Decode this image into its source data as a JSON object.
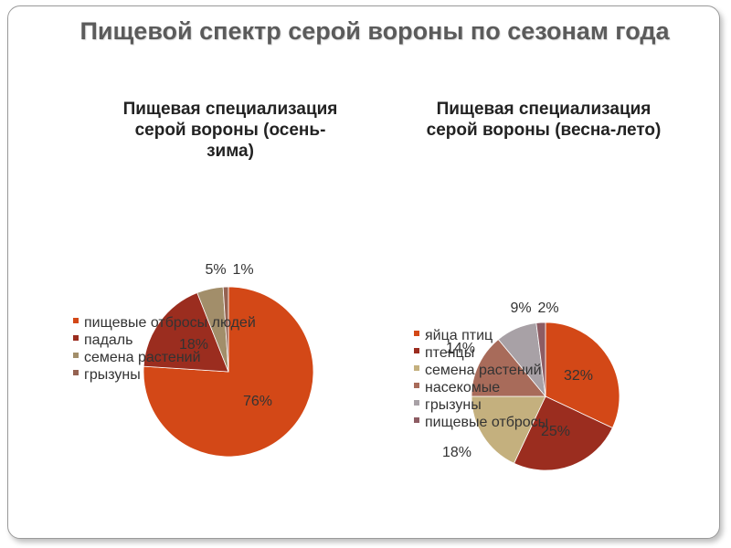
{
  "slide": {
    "title": "Пищевой спектр серой вороны по сезонам года"
  },
  "chart_data": [
    {
      "type": "pie",
      "title": "Пищевая специализация серой вороны (осень-зима)",
      "categories": [
        "пищевые отбросы людей",
        "падаль",
        "семена растений",
        "грызуны"
      ],
      "values": [
        76,
        18,
        5,
        1
      ],
      "value_labels": [
        "76%",
        "18%",
        "5%",
        "1%"
      ],
      "colors": [
        "#D34817",
        "#9B2D1F",
        "#A28E6A",
        "#956251"
      ],
      "legend": "left"
    },
    {
      "type": "pie",
      "title": "Пищевая специализация серой вороны (весна-лето)",
      "categories": [
        "яйца птиц",
        "птенцы",
        "семена растений",
        "насекомые",
        "грызуны",
        "пищевые отбросы"
      ],
      "values": [
        32,
        25,
        18,
        14,
        9,
        2
      ],
      "value_labels": [
        "32%",
        "25%",
        "18%",
        "14%",
        "9%",
        "2%"
      ],
      "colors": [
        "#D34817",
        "#9B2D1F",
        "#C4B07E",
        "#A86B5A",
        "#A8A1A6",
        "#8D5C63"
      ],
      "legend": "left"
    }
  ]
}
